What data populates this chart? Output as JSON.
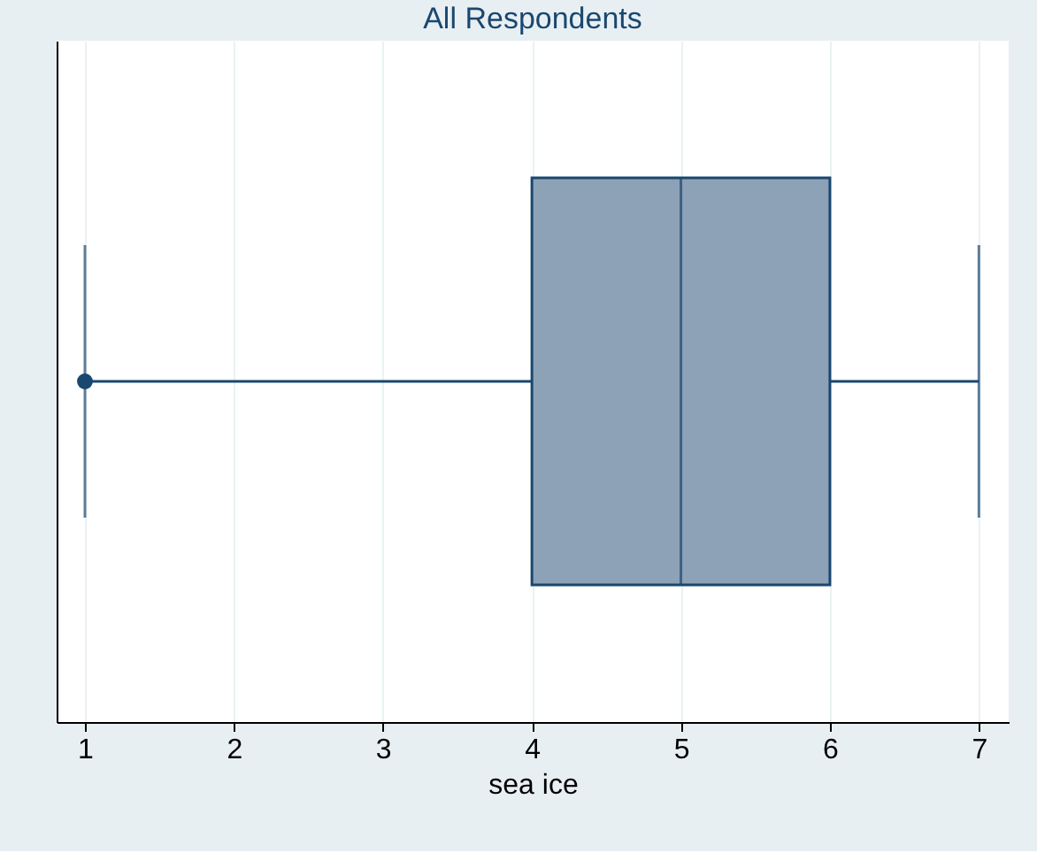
{
  "chart_data": {
    "type": "box",
    "title": "All Respondents",
    "xlabel": "sea ice",
    "orientation": "horizontal",
    "categories": [
      null
    ],
    "series": [
      {
        "color": "#8da2b7",
        "boxes": [
          {
            "low": 1,
            "q1": 4,
            "median": 5,
            "q3": 6,
            "high": 7,
            "outliers": [
              1
            ]
          }
        ]
      }
    ],
    "xlim": [
      0.81,
      7.2
    ],
    "xticks": [
      1,
      2,
      3,
      4,
      5,
      6,
      7
    ],
    "grid": "x"
  }
}
